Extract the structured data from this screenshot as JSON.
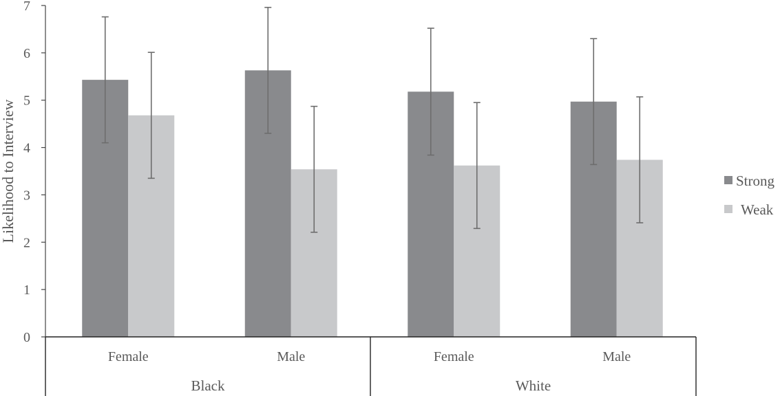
{
  "chart_data": {
    "type": "bar",
    "ylabel": "Likelihood to Interview",
    "ylim": [
      0,
      7
    ],
    "yticks": [
      0,
      1,
      2,
      3,
      4,
      5,
      6,
      7
    ],
    "grid": false,
    "legend_position": "right",
    "groups": [
      {
        "label": "Black",
        "categories": [
          "Female",
          "Male"
        ]
      },
      {
        "label": "White",
        "categories": [
          "Female",
          "Male"
        ]
      }
    ],
    "categories": [
      "Female",
      "Male",
      "Female",
      "Male"
    ],
    "series": [
      {
        "name": "Strong",
        "color": "#898a8d",
        "values": [
          5.43,
          5.63,
          5.18,
          4.97
        ],
        "errors": [
          1.33,
          1.33,
          1.34,
          1.33
        ]
      },
      {
        "name": "Weak",
        "color": "#c8c9cb",
        "values": [
          4.68,
          3.54,
          3.62,
          3.74
        ],
        "errors": [
          1.33,
          1.33,
          1.33,
          1.33
        ]
      }
    ]
  }
}
